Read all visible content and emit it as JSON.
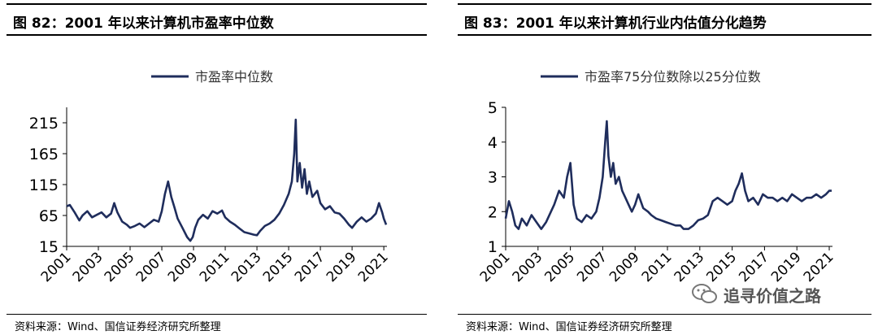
{
  "left": {
    "title": "图 82：2001 年以来计算机市盈率中位数",
    "source": "资料来源：Wind、国信证券经济研究所整理"
  },
  "right": {
    "title": "图 83：2001 年以来计算机行业内估值分化趋势",
    "source": "资料来源：Wind、国信证券经济研究所整理"
  },
  "watermark": {
    "text": "追寻价值之路",
    "icon": "wechat-icon"
  },
  "colors": {
    "series": "#1f2d5c",
    "axis": "#000000"
  },
  "chart_data": [
    {
      "type": "line",
      "title": "",
      "xlabel": "",
      "ylabel": "",
      "xlim": [
        2001,
        2021.2
      ],
      "ylim": [
        15,
        240
      ],
      "y_ticks": [
        15,
        65,
        115,
        165,
        215
      ],
      "x_ticks": [
        "2001",
        "2003",
        "2005",
        "2007",
        "2009",
        "2011",
        "2013",
        "2015",
        "2017",
        "2019",
        "2021"
      ],
      "legend_position": "top",
      "grid": false,
      "series": [
        {
          "name": "市盈率中位数",
          "x": [
            2001.0,
            2001.2,
            2001.5,
            2001.8,
            2002.0,
            2002.3,
            2002.6,
            2002.9,
            2003.2,
            2003.5,
            2003.8,
            2004.0,
            2004.2,
            2004.5,
            2004.8,
            2005.0,
            2005.3,
            2005.6,
            2005.9,
            2006.2,
            2006.5,
            2006.8,
            2007.0,
            2007.2,
            2007.4,
            2007.6,
            2007.8,
            2008.0,
            2008.3,
            2008.6,
            2008.8,
            2008.95,
            2009.1,
            2009.3,
            2009.6,
            2009.9,
            2010.2,
            2010.5,
            2010.8,
            2011.0,
            2011.3,
            2011.6,
            2011.9,
            2012.2,
            2012.5,
            2012.8,
            2013.0,
            2013.2,
            2013.5,
            2013.8,
            2014.1,
            2014.4,
            2014.7,
            2015.0,
            2015.2,
            2015.35,
            2015.45,
            2015.55,
            2015.7,
            2015.85,
            2016.0,
            2016.15,
            2016.3,
            2016.5,
            2016.8,
            2017.0,
            2017.3,
            2017.6,
            2017.9,
            2018.2,
            2018.5,
            2018.8,
            2019.0,
            2019.3,
            2019.6,
            2019.9,
            2020.2,
            2020.5,
            2020.7,
            2020.9,
            2021.0,
            2021.15
          ],
          "values": [
            80,
            82,
            70,
            57,
            65,
            72,
            62,
            66,
            70,
            62,
            68,
            85,
            70,
            55,
            50,
            45,
            48,
            52,
            46,
            52,
            58,
            55,
            72,
            100,
            120,
            95,
            78,
            60,
            45,
            30,
            24,
            30,
            45,
            58,
            66,
            60,
            72,
            68,
            73,
            62,
            55,
            50,
            44,
            38,
            36,
            34,
            33,
            40,
            48,
            52,
            58,
            68,
            82,
            100,
            120,
            165,
            220,
            120,
            150,
            110,
            140,
            100,
            120,
            95,
            105,
            85,
            75,
            80,
            70,
            68,
            60,
            50,
            45,
            55,
            62,
            55,
            60,
            68,
            85,
            70,
            60,
            50
          ]
        }
      ]
    },
    {
      "type": "line",
      "title": "",
      "xlabel": "",
      "ylabel": "",
      "xlim": [
        2001,
        2021.2
      ],
      "ylim": [
        1,
        5
      ],
      "y_ticks": [
        1,
        2,
        3,
        4,
        5
      ],
      "x_ticks": [
        "2001",
        "2003",
        "2005",
        "2007",
        "2009",
        "2011",
        "2013",
        "2015",
        "2017",
        "2019",
        "2021"
      ],
      "legend_position": "top",
      "grid": false,
      "series": [
        {
          "name": "市盈率75分位数除以25分位数",
          "x": [
            2001.0,
            2001.2,
            2001.4,
            2001.6,
            2001.8,
            2002.0,
            2002.3,
            2002.6,
            2002.9,
            2003.2,
            2003.5,
            2003.8,
            2004.0,
            2004.3,
            2004.6,
            2004.8,
            2005.0,
            2005.2,
            2005.4,
            2005.7,
            2006.0,
            2006.3,
            2006.6,
            2006.8,
            2007.0,
            2007.15,
            2007.25,
            2007.35,
            2007.5,
            2007.65,
            2007.8,
            2008.0,
            2008.2,
            2008.4,
            2008.6,
            2008.8,
            2009.0,
            2009.2,
            2009.5,
            2009.8,
            2010.0,
            2010.3,
            2010.6,
            2010.9,
            2011.2,
            2011.5,
            2011.8,
            2012.0,
            2012.3,
            2012.6,
            2012.9,
            2013.2,
            2013.5,
            2013.8,
            2014.1,
            2014.4,
            2014.7,
            2015.0,
            2015.2,
            2015.4,
            2015.6,
            2015.8,
            2016.0,
            2016.3,
            2016.6,
            2016.9,
            2017.2,
            2017.5,
            2017.8,
            2018.1,
            2018.4,
            2018.7,
            2019.0,
            2019.3,
            2019.6,
            2019.9,
            2020.2,
            2020.5,
            2020.8,
            2021.0,
            2021.15
          ],
          "values": [
            1.8,
            2.3,
            2.0,
            1.6,
            1.5,
            1.8,
            1.6,
            1.9,
            1.7,
            1.5,
            1.7,
            2.0,
            2.2,
            2.6,
            2.4,
            3.0,
            3.4,
            2.2,
            1.8,
            1.7,
            1.9,
            1.8,
            2.0,
            2.4,
            3.0,
            4.0,
            4.6,
            3.6,
            3.0,
            3.4,
            2.8,
            3.0,
            2.6,
            2.4,
            2.2,
            2.0,
            2.2,
            2.5,
            2.1,
            2.0,
            1.9,
            1.8,
            1.75,
            1.7,
            1.65,
            1.6,
            1.6,
            1.5,
            1.5,
            1.6,
            1.75,
            1.8,
            1.9,
            2.3,
            2.4,
            2.3,
            2.2,
            2.3,
            2.6,
            2.8,
            3.1,
            2.6,
            2.3,
            2.4,
            2.2,
            2.5,
            2.4,
            2.4,
            2.3,
            2.4,
            2.3,
            2.5,
            2.4,
            2.3,
            2.4,
            2.4,
            2.5,
            2.4,
            2.5,
            2.6,
            2.6
          ]
        }
      ]
    }
  ]
}
